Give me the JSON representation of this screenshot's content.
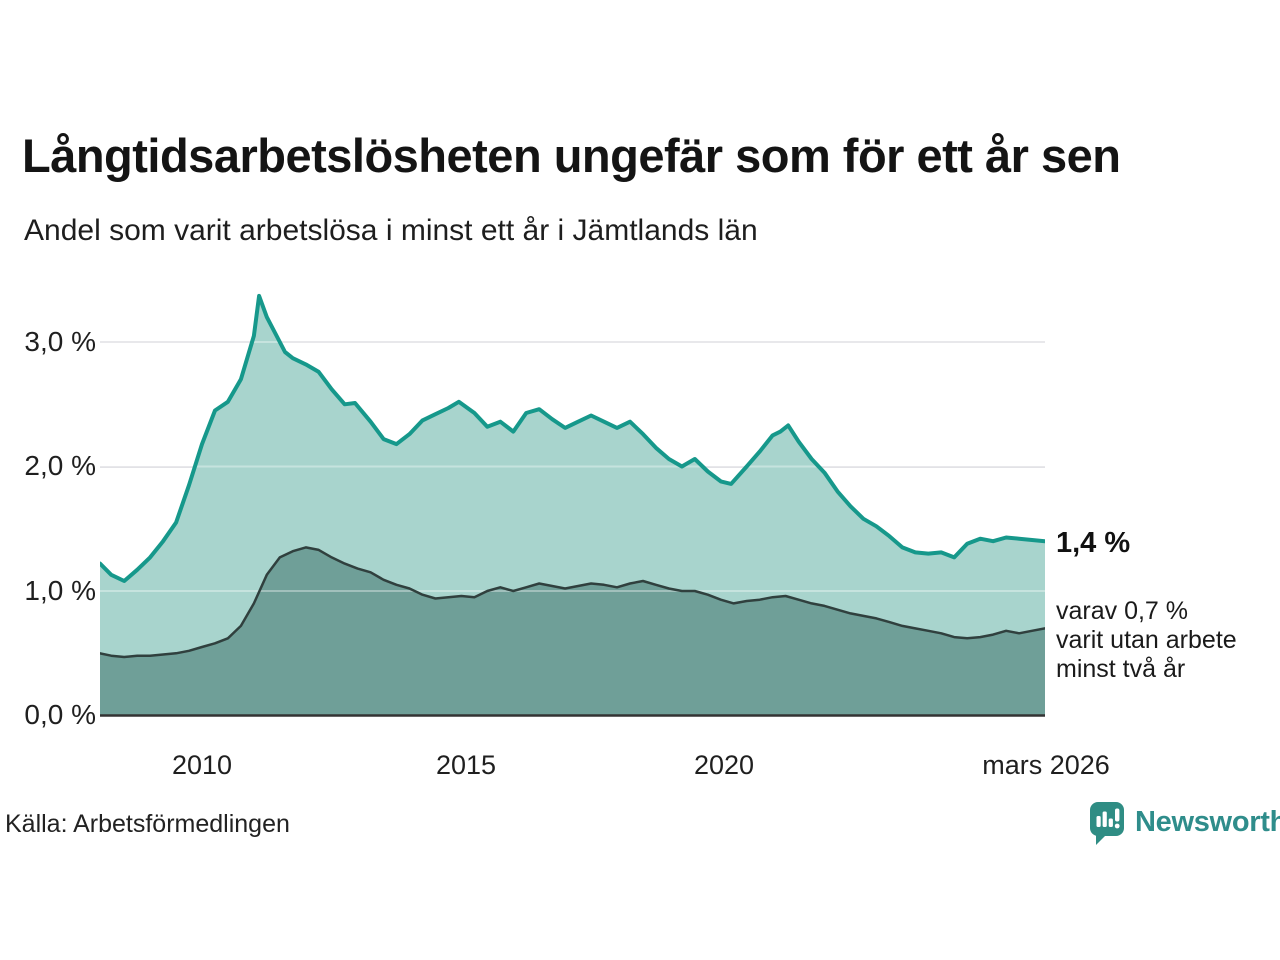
{
  "header": {
    "title": "Långtidsarbetslösheten ungefär som för ett år sen",
    "subtitle": "Andel som varit arbetslösa i minst ett år i Jämtlands län"
  },
  "chart_data": {
    "type": "area",
    "title": "Långtidsarbetslösheten ungefär som för ett år sen",
    "subtitle": "Andel som varit arbetslösa i minst ett år i Jämtlands län",
    "unit": "%",
    "grid": "horizontal",
    "x_axis": {
      "range_years": [
        2008.0,
        2026.3
      ],
      "ticks": [
        "2010",
        "2015",
        "2020",
        "mars 2026"
      ],
      "tick_years": [
        2010,
        2015,
        2020,
        2026.17
      ]
    },
    "y_axis": {
      "range": [
        0.0,
        3.47
      ],
      "ticks": [
        "3,0 %",
        "2,0 %",
        "1,0 %",
        "0,0 %"
      ],
      "tick_values": [
        3.0,
        2.0,
        1.0,
        0.0
      ]
    },
    "series": [
      {
        "name": "Andel som varit arbetslösa minst ett år",
        "line_color": "#16988b",
        "fill_color": "#a8d4cd",
        "line_width": 4,
        "points": [
          [
            2008.0,
            1.22
          ],
          [
            2008.25,
            1.13
          ],
          [
            2008.5,
            1.08
          ],
          [
            2008.75,
            1.17
          ],
          [
            2009.0,
            1.27
          ],
          [
            2009.25,
            1.4
          ],
          [
            2009.5,
            1.55
          ],
          [
            2009.75,
            1.85
          ],
          [
            2010.0,
            2.18
          ],
          [
            2010.25,
            2.45
          ],
          [
            2010.5,
            2.52
          ],
          [
            2010.75,
            2.7
          ],
          [
            2011.0,
            3.05
          ],
          [
            2011.1,
            3.37
          ],
          [
            2011.25,
            3.2
          ],
          [
            2011.4,
            3.08
          ],
          [
            2011.6,
            2.92
          ],
          [
            2011.75,
            2.87
          ],
          [
            2012.0,
            2.82
          ],
          [
            2012.25,
            2.76
          ],
          [
            2012.5,
            2.62
          ],
          [
            2012.75,
            2.5
          ],
          [
            2012.95,
            2.51
          ],
          [
            2013.25,
            2.36
          ],
          [
            2013.5,
            2.22
          ],
          [
            2013.75,
            2.18
          ],
          [
            2014.0,
            2.26
          ],
          [
            2014.25,
            2.37
          ],
          [
            2014.5,
            2.42
          ],
          [
            2014.75,
            2.47
          ],
          [
            2014.95,
            2.52
          ],
          [
            2015.25,
            2.43
          ],
          [
            2015.5,
            2.32
          ],
          [
            2015.75,
            2.36
          ],
          [
            2016.0,
            2.28
          ],
          [
            2016.25,
            2.43
          ],
          [
            2016.5,
            2.46
          ],
          [
            2016.75,
            2.38
          ],
          [
            2017.0,
            2.31
          ],
          [
            2017.25,
            2.36
          ],
          [
            2017.5,
            2.41
          ],
          [
            2017.75,
            2.36
          ],
          [
            2018.0,
            2.31
          ],
          [
            2018.25,
            2.36
          ],
          [
            2018.5,
            2.26
          ],
          [
            2018.75,
            2.15
          ],
          [
            2019.0,
            2.06
          ],
          [
            2019.25,
            2.0
          ],
          [
            2019.5,
            2.06
          ],
          [
            2019.75,
            1.96
          ],
          [
            2020.0,
            1.88
          ],
          [
            2020.2,
            1.86
          ],
          [
            2020.5,
            2.0
          ],
          [
            2020.75,
            2.12
          ],
          [
            2021.0,
            2.25
          ],
          [
            2021.15,
            2.28
          ],
          [
            2021.3,
            2.33
          ],
          [
            2021.5,
            2.2
          ],
          [
            2021.75,
            2.06
          ],
          [
            2022.0,
            1.95
          ],
          [
            2022.25,
            1.8
          ],
          [
            2022.5,
            1.68
          ],
          [
            2022.75,
            1.58
          ],
          [
            2023.0,
            1.52
          ],
          [
            2023.25,
            1.44
          ],
          [
            2023.5,
            1.35
          ],
          [
            2023.75,
            1.31
          ],
          [
            2024.0,
            1.3
          ],
          [
            2024.25,
            1.31
          ],
          [
            2024.5,
            1.27
          ],
          [
            2024.75,
            1.38
          ],
          [
            2025.0,
            1.42
          ],
          [
            2025.25,
            1.4
          ],
          [
            2025.5,
            1.43
          ],
          [
            2025.75,
            1.42
          ],
          [
            2026.0,
            1.41
          ],
          [
            2026.25,
            1.4
          ]
        ]
      },
      {
        "name": "varav varit utan arbete minst två år",
        "line_color": "#30403e",
        "fill_color": "#6f9f98",
        "line_width": 2.5,
        "points": [
          [
            2008.0,
            0.5
          ],
          [
            2008.25,
            0.48
          ],
          [
            2008.5,
            0.47
          ],
          [
            2008.75,
            0.48
          ],
          [
            2009.0,
            0.48
          ],
          [
            2009.25,
            0.49
          ],
          [
            2009.5,
            0.5
          ],
          [
            2009.75,
            0.52
          ],
          [
            2010.0,
            0.55
          ],
          [
            2010.25,
            0.58
          ],
          [
            2010.5,
            0.62
          ],
          [
            2010.75,
            0.72
          ],
          [
            2011.0,
            0.9
          ],
          [
            2011.25,
            1.13
          ],
          [
            2011.5,
            1.27
          ],
          [
            2011.75,
            1.32
          ],
          [
            2012.0,
            1.35
          ],
          [
            2012.25,
            1.33
          ],
          [
            2012.5,
            1.27
          ],
          [
            2012.75,
            1.22
          ],
          [
            2013.0,
            1.18
          ],
          [
            2013.25,
            1.15
          ],
          [
            2013.5,
            1.09
          ],
          [
            2013.75,
            1.05
          ],
          [
            2014.0,
            1.02
          ],
          [
            2014.25,
            0.97
          ],
          [
            2014.5,
            0.94
          ],
          [
            2014.75,
            0.95
          ],
          [
            2015.0,
            0.96
          ],
          [
            2015.25,
            0.95
          ],
          [
            2015.5,
            1.0
          ],
          [
            2015.75,
            1.03
          ],
          [
            2016.0,
            1.0
          ],
          [
            2016.25,
            1.03
          ],
          [
            2016.5,
            1.06
          ],
          [
            2016.75,
            1.04
          ],
          [
            2017.0,
            1.02
          ],
          [
            2017.25,
            1.04
          ],
          [
            2017.5,
            1.06
          ],
          [
            2017.75,
            1.05
          ],
          [
            2018.0,
            1.03
          ],
          [
            2018.25,
            1.06
          ],
          [
            2018.5,
            1.08
          ],
          [
            2018.75,
            1.05
          ],
          [
            2019.0,
            1.02
          ],
          [
            2019.25,
            1.0
          ],
          [
            2019.5,
            1.0
          ],
          [
            2019.75,
            0.97
          ],
          [
            2020.0,
            0.93
          ],
          [
            2020.25,
            0.9
          ],
          [
            2020.5,
            0.92
          ],
          [
            2020.75,
            0.93
          ],
          [
            2021.0,
            0.95
          ],
          [
            2021.25,
            0.96
          ],
          [
            2021.5,
            0.93
          ],
          [
            2021.75,
            0.9
          ],
          [
            2022.0,
            0.88
          ],
          [
            2022.25,
            0.85
          ],
          [
            2022.5,
            0.82
          ],
          [
            2022.75,
            0.8
          ],
          [
            2023.0,
            0.78
          ],
          [
            2023.25,
            0.75
          ],
          [
            2023.5,
            0.72
          ],
          [
            2023.75,
            0.7
          ],
          [
            2024.0,
            0.68
          ],
          [
            2024.25,
            0.66
          ],
          [
            2024.5,
            0.63
          ],
          [
            2024.75,
            0.62
          ],
          [
            2025.0,
            0.63
          ],
          [
            2025.25,
            0.65
          ],
          [
            2025.5,
            0.68
          ],
          [
            2025.75,
            0.66
          ],
          [
            2026.0,
            0.68
          ],
          [
            2026.25,
            0.7
          ]
        ]
      }
    ],
    "annotations": {
      "last_value_label": "1,4 %",
      "sub_label_lines": [
        "varav 0,7 %",
        "varit utan arbete",
        "minst två år"
      ]
    },
    "legend_position": "none"
  },
  "colors": {
    "gridline": "#dcdce0",
    "grid_overlay": "rgba(255,255,255,0.35)",
    "axis_line": "#333333",
    "brand_teal": "#2f8d8b"
  },
  "footer": {
    "source": "Källa: Arbetsförmedlingen",
    "brand": "Newsworthy"
  }
}
